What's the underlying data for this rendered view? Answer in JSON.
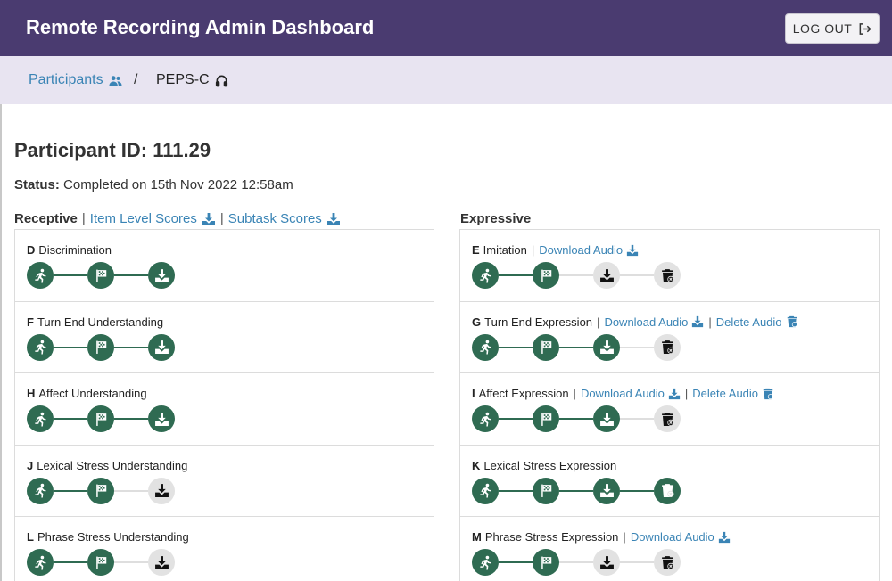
{
  "header": {
    "title": "Remote Recording Admin Dashboard",
    "logout_label": "LOG OUT"
  },
  "breadcrumb": {
    "participants": "Participants",
    "separator": "/",
    "current": "PEPS-C"
  },
  "participant": {
    "id_label": "Participant ID: 111.29",
    "status_label": "Status:",
    "status_value": "Completed on 15th Nov 2022 12:58am"
  },
  "receptive": {
    "heading": "Receptive",
    "item_scores_label": "Item Level Scores",
    "subtask_scores_label": "Subtask Scores",
    "tasks": [
      {
        "letter": "D",
        "name": "Discrimination",
        "steps": [
          "started-icon",
          "finished-icon",
          "download-icon"
        ],
        "active": [
          true,
          true,
          true
        ],
        "links": []
      },
      {
        "letter": "F",
        "name": "Turn End Understanding",
        "steps": [
          "started-icon",
          "finished-icon",
          "download-icon"
        ],
        "active": [
          true,
          true,
          true
        ],
        "links": []
      },
      {
        "letter": "H",
        "name": "Affect Understanding",
        "steps": [
          "started-icon",
          "finished-icon",
          "download-icon"
        ],
        "active": [
          true,
          true,
          true
        ],
        "links": []
      },
      {
        "letter": "J",
        "name": "Lexical Stress Understanding",
        "steps": [
          "started-icon",
          "finished-icon",
          "download-icon"
        ],
        "active": [
          true,
          true,
          false
        ],
        "links": []
      },
      {
        "letter": "L",
        "name": "Phrase Stress Understanding",
        "steps": [
          "started-icon",
          "finished-icon",
          "download-icon"
        ],
        "active": [
          true,
          true,
          false
        ],
        "links": []
      }
    ]
  },
  "expressive": {
    "heading": "Expressive",
    "tasks": [
      {
        "letter": "E",
        "name": "Imitation",
        "steps": [
          "started-icon",
          "finished-icon",
          "download-icon",
          "delete-icon"
        ],
        "active": [
          true,
          true,
          false,
          false
        ],
        "links": [
          {
            "label": "Download Audio",
            "icon": "download-icon"
          }
        ]
      },
      {
        "letter": "G",
        "name": "Turn End Expression",
        "steps": [
          "started-icon",
          "finished-icon",
          "download-icon",
          "delete-icon"
        ],
        "active": [
          true,
          true,
          true,
          false
        ],
        "links": [
          {
            "label": "Download Audio",
            "icon": "download-icon"
          },
          {
            "label": "Delete Audio",
            "icon": "delete-icon"
          }
        ]
      },
      {
        "letter": "I",
        "name": "Affect Expression",
        "steps": [
          "started-icon",
          "finished-icon",
          "download-icon",
          "delete-icon"
        ],
        "active": [
          true,
          true,
          true,
          false
        ],
        "links": [
          {
            "label": "Download Audio",
            "icon": "download-icon"
          },
          {
            "label": "Delete Audio",
            "icon": "delete-icon"
          }
        ]
      },
      {
        "letter": "K",
        "name": "Lexical Stress Expression",
        "steps": [
          "started-icon",
          "finished-icon",
          "download-icon",
          "delete-icon"
        ],
        "active": [
          true,
          true,
          true,
          true
        ],
        "links": []
      },
      {
        "letter": "M",
        "name": "Phrase Stress Expression",
        "steps": [
          "started-icon",
          "finished-icon",
          "download-icon",
          "delete-icon"
        ],
        "active": [
          true,
          true,
          false,
          false
        ],
        "links": [
          {
            "label": "Download Audio",
            "icon": "download-icon"
          }
        ]
      }
    ]
  },
  "colors": {
    "header_bg": "#4a3b70",
    "breadcrumb_bg": "#e8e4f1",
    "link": "#3a84b5",
    "step_active": "#2f6b52",
    "step_inactive": "#e2e2e2"
  }
}
